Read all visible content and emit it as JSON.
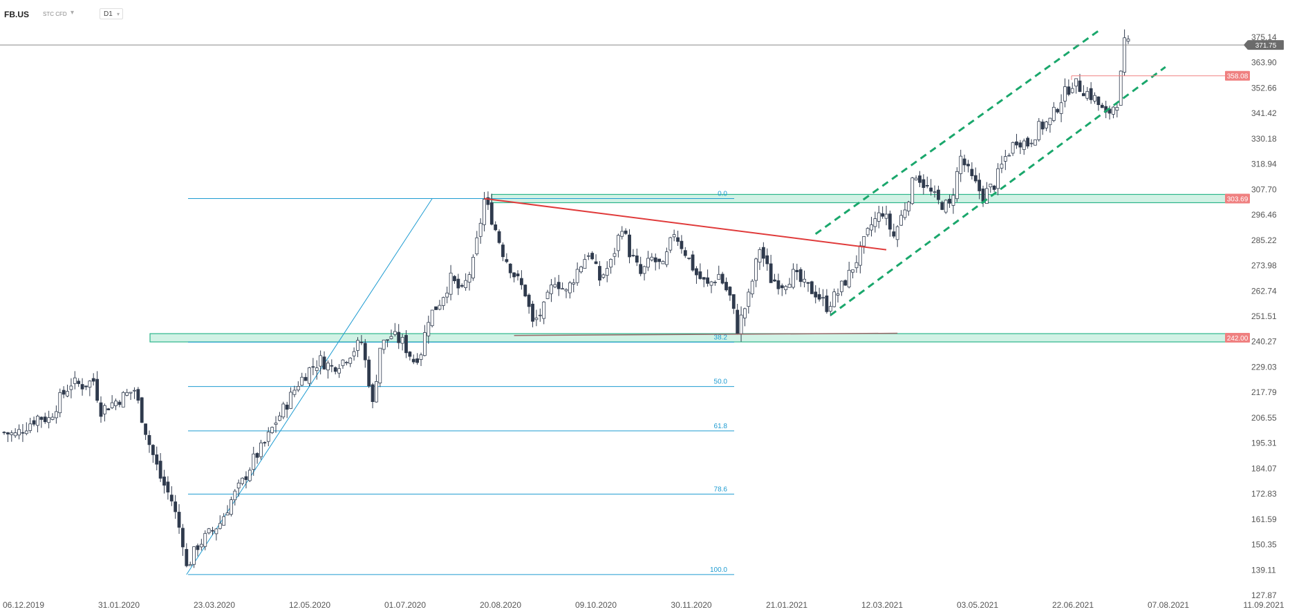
{
  "toolbar": {
    "symbol": "FB.US",
    "instrument_type": "STC CFD",
    "timeframe": "D1"
  },
  "colors": {
    "candle": "#2f3a4d",
    "fib": "#1d9bd1",
    "zone_fill": "#c9f0e1",
    "zone_border": "#2bb58a",
    "channel": "#1aa76c",
    "trendline": "#e03a3a",
    "price_tag": "#6b6b6b",
    "level_tag": "#ef8080",
    "axis_text": "#555555"
  },
  "chart_data": {
    "type": "candlestick",
    "y_axis": {
      "ticks": [
        "375.14",
        "363.90",
        "352.66",
        "341.42",
        "330.18",
        "318.94",
        "307.70",
        "296.46",
        "285.22",
        "273.98",
        "262.74",
        "251.51",
        "240.27",
        "229.03",
        "217.79",
        "206.55",
        "195.31",
        "184.07",
        "172.83",
        "161.59",
        "150.35",
        "139.11",
        "127.87"
      ],
      "range": [
        127.87,
        375.14
      ]
    },
    "x_axis": {
      "ticks": [
        "06.12.2019",
        "31.01.2020",
        "23.03.2020",
        "12.05.2020",
        "01.07.2020",
        "20.08.2020",
        "09.10.2020",
        "30.11.2020",
        "21.01.2021",
        "12.03.2021",
        "03.05.2021",
        "22.06.2021",
        "07.08.2021",
        "11.09.2021"
      ]
    },
    "current_price": {
      "value": 371.75,
      "label": "371.75"
    },
    "horizontal_levels": [
      {
        "value": 358.08,
        "label": "358.08"
      },
      {
        "value": 303.69,
        "label": "303.69"
      },
      {
        "value": 242.0,
        "label": "242.00"
      }
    ],
    "fibonacci": {
      "high": 303.69,
      "low": 137.1,
      "levels": [
        {
          "ratio": 0.0,
          "label": "0.0"
        },
        {
          "ratio": 0.382,
          "label": "38.2"
        },
        {
          "ratio": 0.5,
          "label": "50.0"
        },
        {
          "ratio": 0.618,
          "label": "61.8"
        },
        {
          "ratio": 0.786,
          "label": "78.6"
        },
        {
          "ratio": 1.0,
          "label": "100.0"
        }
      ]
    },
    "price_path": [
      [
        0,
        200
      ],
      [
        3,
        199
      ],
      [
        6,
        203
      ],
      [
        9,
        207
      ],
      [
        12,
        206
      ],
      [
        15,
        215
      ],
      [
        18,
        222
      ],
      [
        21,
        221
      ],
      [
        24,
        223
      ],
      [
        26,
        210
      ],
      [
        29,
        213
      ],
      [
        32,
        216
      ],
      [
        35,
        219
      ],
      [
        36,
        213
      ],
      [
        39,
        195
      ],
      [
        42,
        180
      ],
      [
        45,
        170
      ],
      [
        48,
        152
      ],
      [
        49,
        140
      ],
      [
        52,
        150
      ],
      [
        55,
        155
      ],
      [
        58,
        160
      ],
      [
        61,
        170
      ],
      [
        64,
        178
      ],
      [
        67,
        188
      ],
      [
        70,
        195
      ],
      [
        73,
        205
      ],
      [
        76,
        213
      ],
      [
        79,
        222
      ],
      [
        82,
        228
      ],
      [
        85,
        232
      ],
      [
        88,
        229
      ],
      [
        91,
        232
      ],
      [
        94,
        237
      ],
      [
        96,
        240
      ],
      [
        98,
        223
      ],
      [
        99,
        212
      ],
      [
        101,
        238
      ],
      [
        104,
        243
      ],
      [
        107,
        240
      ],
      [
        110,
        232
      ],
      [
        112,
        236
      ],
      [
        114,
        251
      ],
      [
        117,
        258
      ],
      [
        120,
        268
      ],
      [
        123,
        262
      ],
      [
        126,
        275
      ],
      [
        129,
        303
      ],
      [
        131,
        295
      ],
      [
        134,
        280
      ],
      [
        137,
        270
      ],
      [
        140,
        262
      ],
      [
        142,
        248
      ],
      [
        145,
        255
      ],
      [
        148,
        268
      ],
      [
        151,
        262
      ],
      [
        154,
        272
      ],
      [
        157,
        280
      ],
      [
        160,
        268
      ],
      [
        163,
        275
      ],
      [
        166,
        292
      ],
      [
        168,
        280
      ],
      [
        171,
        270
      ],
      [
        174,
        277
      ],
      [
        177,
        273
      ],
      [
        180,
        289
      ],
      [
        183,
        280
      ],
      [
        186,
        270
      ],
      [
        189,
        265
      ],
      [
        192,
        270
      ],
      [
        195,
        260
      ],
      [
        197,
        246
      ],
      [
        200,
        260
      ],
      [
        203,
        282
      ],
      [
        206,
        268
      ],
      [
        209,
        266
      ],
      [
        212,
        270
      ],
      [
        215,
        265
      ],
      [
        218,
        262
      ],
      [
        221,
        256
      ],
      [
        224,
        262
      ],
      [
        227,
        270
      ],
      [
        230,
        280
      ],
      [
        233,
        292
      ],
      [
        236,
        298
      ],
      [
        239,
        287
      ],
      [
        242,
        300
      ],
      [
        245,
        315
      ],
      [
        248,
        308
      ],
      [
        251,
        302
      ],
      [
        254,
        300
      ],
      [
        257,
        322
      ],
      [
        260,
        312
      ],
      [
        263,
        305
      ],
      [
        266,
        310
      ],
      [
        269,
        322
      ],
      [
        272,
        330
      ],
      [
        275,
        328
      ],
      [
        278,
        335
      ],
      [
        281,
        338
      ],
      [
        284,
        348
      ],
      [
        287,
        355
      ],
      [
        290,
        352
      ],
      [
        293,
        348
      ],
      [
        296,
        340
      ],
      [
        299,
        347
      ],
      [
        300,
        358
      ],
      [
        301,
        372
      ],
      [
        302,
        371.75
      ]
    ],
    "trendlines": [
      {
        "name": "descending",
        "from": {
          "i": 129,
          "v": 303.69
        },
        "to": {
          "i": 237,
          "v": 281
        }
      },
      {
        "name": "support_38",
        "from": {
          "i": 137,
          "v": 243
        },
        "to": {
          "i": 240,
          "v": 244
        }
      }
    ],
    "channel": {
      "upper": {
        "from": {
          "i": 218,
          "v": 288
        },
        "to": {
          "i": 294,
          "v": 378
        }
      },
      "lower": {
        "from": {
          "i": 222,
          "v": 252
        },
        "to": {
          "i": 312,
          "v": 362
        }
      }
    },
    "fib_projection_line": {
      "from": {
        "i": 49,
        "v": 137.1
      },
      "to": {
        "i": 115,
        "v": 303.69
      }
    }
  }
}
